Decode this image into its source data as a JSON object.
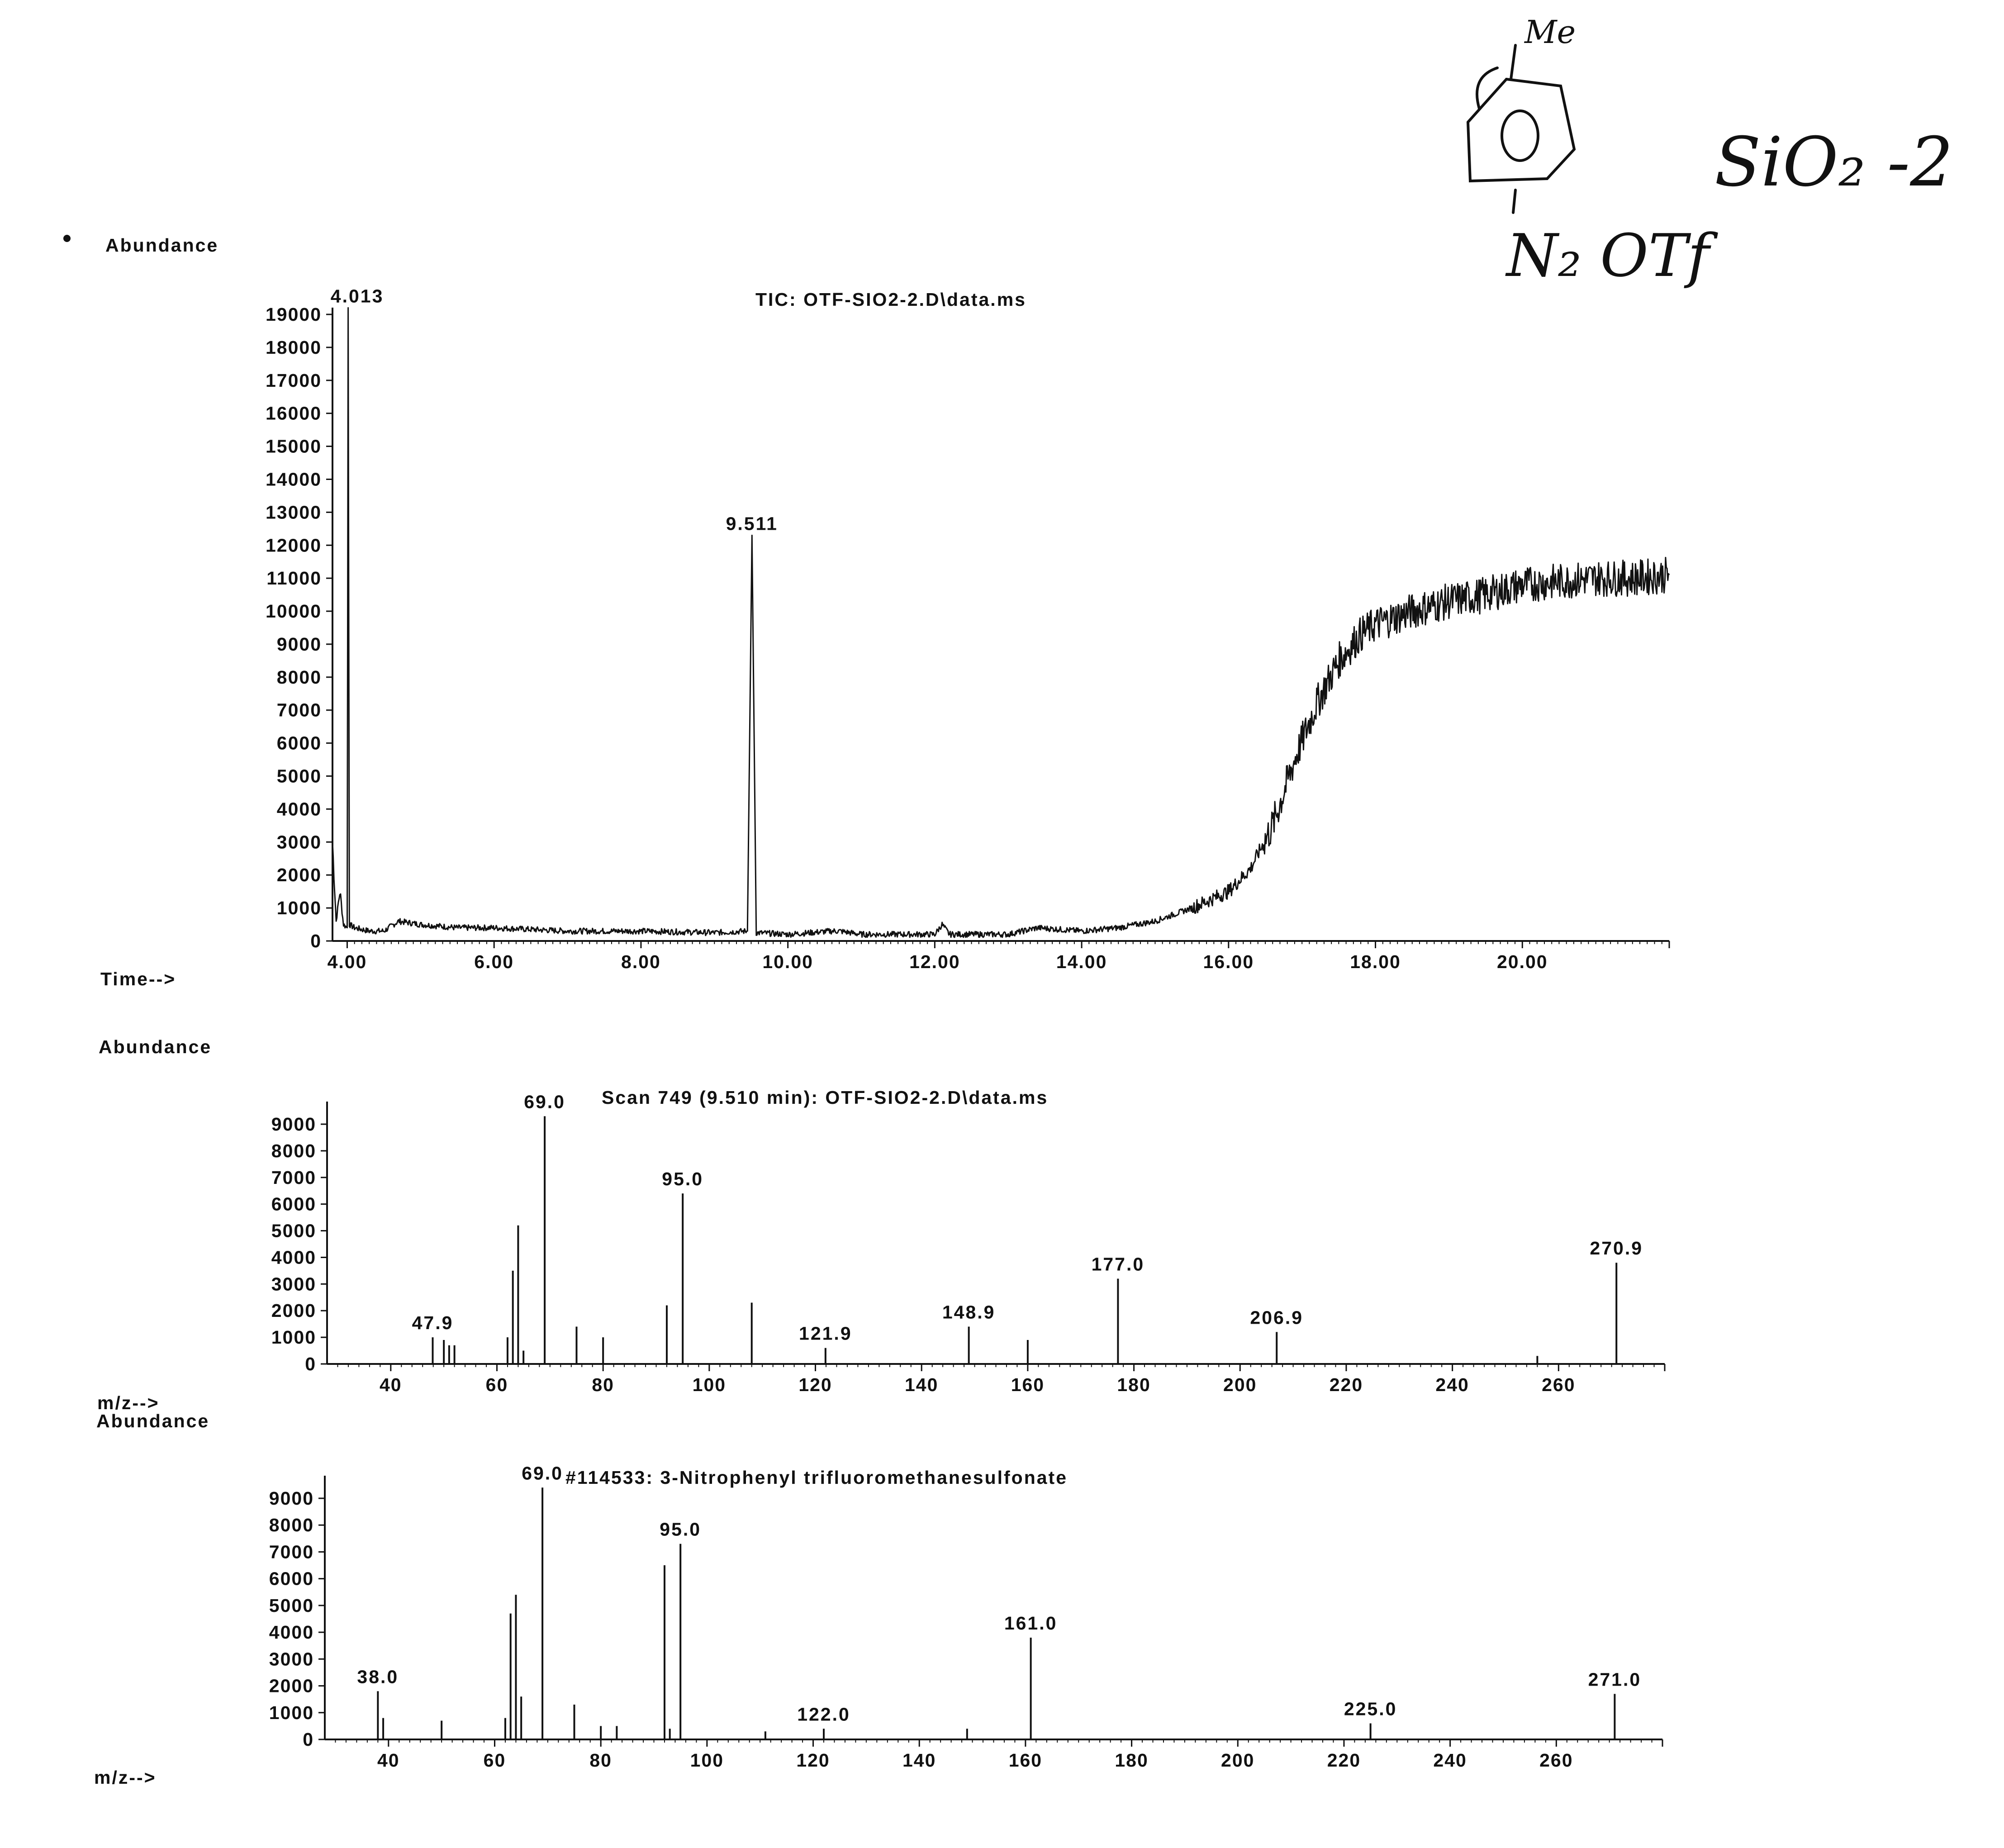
{
  "handwritten": {
    "structure_substituent_top": "Me",
    "structure_substituent_bottom": "N₂ OTf",
    "note": "SiO₂ -2"
  },
  "chart_data": [
    {
      "type": "line",
      "title": "TIC: OTF-SIO2-2.D\\data.ms",
      "ylabel": "Abundance",
      "xlabel": "Time-->",
      "ylim": [
        0,
        19000
      ],
      "xlim": [
        3.8,
        22.0
      ],
      "yticks": [
        "0",
        "1000",
        "2000",
        "3000",
        "4000",
        "5000",
        "6000",
        "7000",
        "8000",
        "9000",
        "10000",
        "11000",
        "12000",
        "13000",
        "14000",
        "15000",
        "16000",
        "17000",
        "18000",
        "19000"
      ],
      "xticks": [
        "4.00",
        "6.00",
        "8.00",
        "10.00",
        "12.00",
        "14.00",
        "16.00",
        "18.00",
        "20.00"
      ],
      "peak_labels": [
        {
          "x": 4.013,
          "y": 19200,
          "label": "4.013"
        },
        {
          "x": 9.511,
          "y": 12300,
          "label": "9.511"
        }
      ],
      "x": [
        3.8,
        3.85,
        3.9,
        3.95,
        4.0,
        4.013,
        4.03,
        4.1,
        4.3,
        4.5,
        4.7,
        5.0,
        5.5,
        6.0,
        7.0,
        8.0,
        9.0,
        9.45,
        9.511,
        9.57,
        10.0,
        10.6,
        10.7,
        11.0,
        12.0,
        12.1,
        12.2,
        13.0,
        13.4,
        14.0,
        14.5,
        15.0,
        15.5,
        16.0,
        16.3,
        16.6,
        16.9,
        17.2,
        17.5,
        17.8,
        18.0,
        18.5,
        19.0,
        19.5,
        20.0,
        20.5,
        21.0,
        21.5,
        22.0
      ],
      "y": [
        3000,
        600,
        1500,
        500,
        400,
        19200,
        500,
        400,
        300,
        300,
        600,
        500,
        400,
        400,
        300,
        300,
        250,
        300,
        12300,
        250,
        200,
        300,
        300,
        200,
        200,
        500,
        200,
        200,
        400,
        300,
        400,
        600,
        1000,
        1500,
        2200,
        3500,
        5500,
        7200,
        8500,
        9300,
        9600,
        10000,
        10300,
        10500,
        10800,
        10900,
        11000,
        11000,
        11100
      ]
    },
    {
      "type": "bar",
      "title": "Scan 749 (9.510 min): OTF-SIO2-2.D\\data.ms",
      "ylabel": "Abundance",
      "xlabel": "m/z-->",
      "ylim": [
        0,
        9000
      ],
      "xlim": [
        28,
        280
      ],
      "yticks": [
        "0",
        "1000",
        "2000",
        "3000",
        "4000",
        "5000",
        "6000",
        "7000",
        "8000",
        "9000"
      ],
      "xticks": [
        "40",
        "60",
        "80",
        "100",
        "120",
        "140",
        "160",
        "180",
        "200",
        "220",
        "240",
        "260"
      ],
      "x": [
        47.9,
        50,
        51,
        52,
        62,
        63,
        64,
        65,
        69.0,
        75,
        80,
        92,
        95.0,
        108,
        121.9,
        148.9,
        160,
        177.0,
        206.9,
        256,
        270.9
      ],
      "values": [
        1000,
        900,
        700,
        700,
        1000,
        3500,
        5200,
        500,
        9300,
        1400,
        1000,
        2200,
        6400,
        2300,
        600,
        1400,
        900,
        3200,
        1200,
        300,
        3800
      ],
      "labels": [
        {
          "x": 47.9,
          "label": "47.9"
        },
        {
          "x": 69.0,
          "label": "69.0"
        },
        {
          "x": 95.0,
          "label": "95.0"
        },
        {
          "x": 121.9,
          "label": "121.9"
        },
        {
          "x": 148.9,
          "label": "148.9"
        },
        {
          "x": 177.0,
          "label": "177.0"
        },
        {
          "x": 206.9,
          "label": "206.9"
        },
        {
          "x": 270.9,
          "label": "270.9"
        }
      ]
    },
    {
      "type": "bar",
      "title": "#114533: 3-Nitrophenyl trifluoromethanesulfonate",
      "ylabel": "Abundance",
      "xlabel": "m/z-->",
      "ylim": [
        0,
        9000
      ],
      "xlim": [
        28,
        280
      ],
      "yticks": [
        "0",
        "1000",
        "2000",
        "3000",
        "4000",
        "5000",
        "6000",
        "7000",
        "8000",
        "9000"
      ],
      "xticks": [
        "40",
        "60",
        "80",
        "100",
        "120",
        "140",
        "160",
        "180",
        "200",
        "220",
        "240",
        "260"
      ],
      "x": [
        38.0,
        39,
        50,
        62,
        63,
        64,
        65,
        69.0,
        75,
        80,
        83,
        92,
        93,
        95.0,
        111,
        122.0,
        149,
        161.0,
        225.0,
        271.0
      ],
      "values": [
        1800,
        800,
        700,
        800,
        4700,
        5400,
        1600,
        9400,
        1300,
        500,
        500,
        6500,
        400,
        7300,
        300,
        400,
        400,
        3800,
        600,
        1700
      ],
      "labels": [
        {
          "x": 38.0,
          "label": "38.0"
        },
        {
          "x": 69.0,
          "label": "69.0"
        },
        {
          "x": 95.0,
          "label": "95.0"
        },
        {
          "x": 122.0,
          "label": "122.0"
        },
        {
          "x": 161.0,
          "label": "161.0"
        },
        {
          "x": 225.0,
          "label": "225.0"
        },
        {
          "x": 271.0,
          "label": "271.0"
        }
      ]
    }
  ]
}
